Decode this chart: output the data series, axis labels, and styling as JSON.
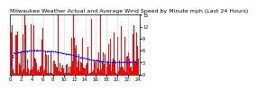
{
  "title": "Milwaukee Weather Actual and Average Wind Speed by Minute mph (Last 24 Hours)",
  "background_color": "#ffffff",
  "plot_bg_color": "#ffffff",
  "bar_color": "#ff0000",
  "avg_line_color": "#0000ff",
  "avg_line_style": "dotted",
  "n_points": 1440,
  "y_max": 15,
  "y_min": 0,
  "seed": 42,
  "avg_base": 4.5,
  "avg_amplitude": 1.5,
  "spike_probability": 0.08,
  "spike_max": 14,
  "title_fontsize": 4.5,
  "tick_fontsize": 3.5,
  "grid_color": "#aaaaaa",
  "grid_style": "dashed",
  "n_xticks": 12,
  "smooth_window": 60
}
